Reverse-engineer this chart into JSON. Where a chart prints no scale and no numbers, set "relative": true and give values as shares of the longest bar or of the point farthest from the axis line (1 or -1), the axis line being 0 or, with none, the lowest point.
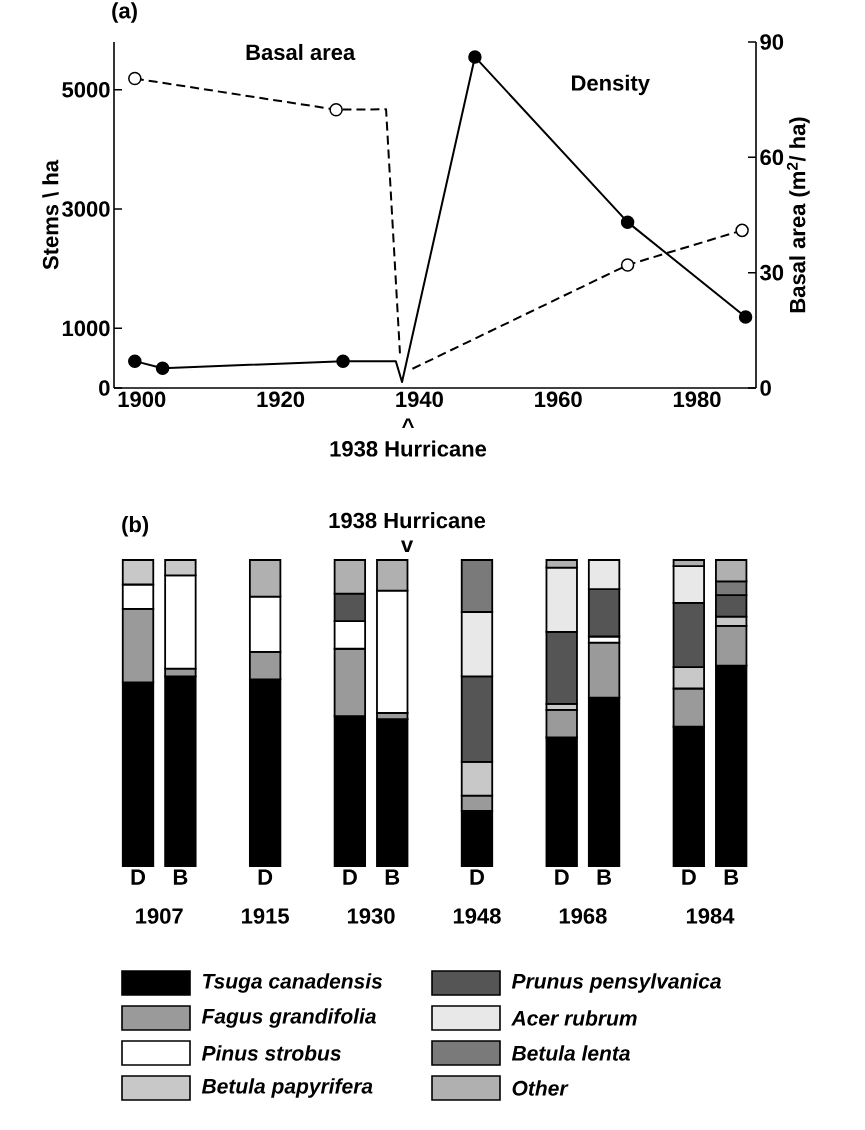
{
  "chart_data": [
    {
      "type": "line",
      "ylabel": "Stems \\ ha",
      "y2label": "Basal area (m$^{2}$/ ha)",
      "annotations": [
        "(a)",
        "^",
        "1938 Hurricane"
      ],
      "xlim": [
        1896,
        1988.5
      ],
      "xticks": [
        1900,
        1920,
        1940,
        1960,
        1980
      ],
      "ylim": [
        0,
        5800
      ],
      "yticks": [
        0,
        1000,
        3000,
        5000
      ],
      "y2lim": [
        0,
        90
      ],
      "y2ticks": [
        0,
        30,
        60,
        90
      ],
      "series": [
        {
          "name": "Density",
          "color": "#000000",
          "line_style": "solid",
          "x": [
            1899,
            1903,
            1929,
            1936.6,
            1937.5,
            1948,
            1970,
            1987
          ],
          "values": [
            450,
            330,
            450,
            450,
            100,
            5550,
            2780,
            1190
          ]
        },
        {
          "name": "Basal area",
          "color": "#000000",
          "line_style": "dashed",
          "axis": "y2",
          "x": [
            1899,
            1928,
            1935.2,
            1937.2,
            1938,
            1939,
            1970,
            1986.5
          ],
          "values": [
            80.5,
            72.4,
            72.5,
            9,
            null,
            5,
            32,
            41
          ]
        },
        {
          "type": "scatter",
          "marker": "circle",
          "color": "#000000",
          "x": [
            1899,
            1903,
            1929,
            1948,
            1970,
            1987
          ],
          "values": [
            450,
            330,
            450,
            5550,
            2780,
            1190
          ]
        },
        {
          "type": "scatter",
          "marker": "circle",
          "color": "#ffffff",
          "axis": "y2",
          "x": [
            1899,
            1928,
            1970,
            1986.5
          ],
          "values": [
            80.5,
            72.4,
            32,
            41
          ]
        }
      ]
    },
    {
      "type": "bar",
      "stacked": true,
      "relative": true,
      "legend": "bottom",
      "categories": [
        "D",
        "B",
        null,
        "D",
        null,
        "D",
        "B",
        null,
        "D",
        null,
        "D",
        "B",
        null,
        "D",
        "B"
      ],
      "annotations": [
        "(b)",
        "1938 Hurricane",
        "v",
        "1907",
        "1915",
        "1930",
        "1948",
        "1968",
        "1984"
      ],
      "series": [
        {
          "name": "Tsuga canadensis",
          "color": "#000000",
          "values": [
            0.6,
            0.62,
            null,
            0.61,
            null,
            0.49,
            0.48,
            null,
            0.18,
            null,
            0.42,
            0.55,
            null,
            0.455,
            0.655
          ]
        },
        {
          "name": "Fagus grandifolia",
          "color": "#9a9a9a",
          "values": [
            0.24,
            0.025,
            null,
            0.09,
            null,
            0.22,
            0.02,
            null,
            0.05,
            null,
            0.09,
            0.18,
            null,
            0.125,
            0.13
          ]
        },
        {
          "name": "Pinus strobus",
          "color": "#ffffff",
          "values": [
            0.08,
            0.305,
            null,
            0.18,
            null,
            0.09,
            0.4,
            null,
            null,
            null,
            null,
            0.02,
            null,
            null,
            null
          ]
        },
        {
          "name": "Betula papyrifera",
          "color": "#c8c8c8",
          "values": [
            0.08,
            0.05,
            null,
            null,
            null,
            null,
            null,
            null,
            0.11,
            null,
            0.02,
            null,
            null,
            0.07,
            0.03
          ]
        },
        {
          "name": "Prunus pensylvanica",
          "color": "#555555",
          "values": [
            null,
            null,
            null,
            null,
            null,
            0.09,
            null,
            null,
            0.28,
            null,
            0.235,
            0.155,
            null,
            0.21,
            0.07
          ]
        },
        {
          "name": "Acer rubrum",
          "color": "#e8e8e8",
          "values": [
            null,
            null,
            null,
            null,
            null,
            null,
            null,
            null,
            0.21,
            null,
            0.21,
            0.095,
            null,
            0.12,
            null
          ]
        },
        {
          "name": "Betula lenta",
          "color": "#7a7a7a",
          "values": [
            null,
            null,
            null,
            null,
            null,
            null,
            null,
            null,
            0.17,
            null,
            null,
            null,
            null,
            null,
            0.045
          ]
        },
        {
          "name": "Other",
          "color": "#b0b0b0",
          "values": [
            null,
            null,
            null,
            0.12,
            null,
            0.11,
            0.1,
            null,
            null,
            null,
            0.025,
            null,
            null,
            0.02,
            0.07
          ]
        }
      ]
    }
  ]
}
